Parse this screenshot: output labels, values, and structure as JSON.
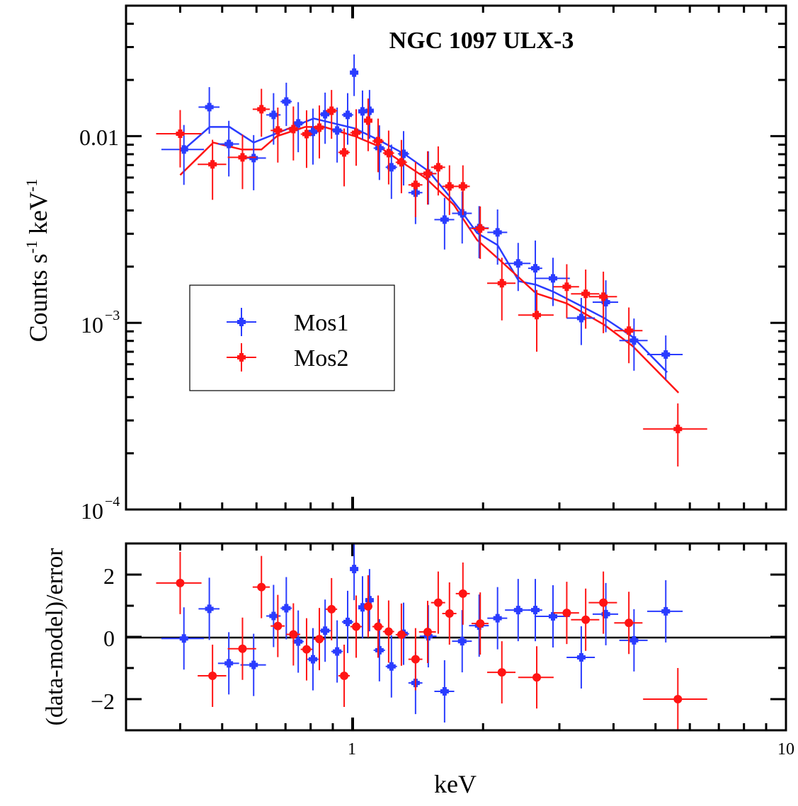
{
  "chart_data": [
    {
      "type": "scatter",
      "title": "NGC 1097 ULX-3",
      "xlabel": "keV",
      "ylabel": {
        "main": "Counts s",
        "sup1": "-1",
        "mid": " keV",
        "sup2": "-1"
      },
      "xscale": "log",
      "yscale": "log",
      "xlim": [
        0.3,
        10
      ],
      "ylim": [
        0.0001,
        0.05
      ],
      "ytick_labels": [
        {
          "value": 0.01,
          "text": "0.01"
        },
        {
          "value": 0.001,
          "base": "10",
          "exp": "−3"
        },
        {
          "value": 0.0001,
          "base": "10",
          "exp": "−4"
        }
      ],
      "legend": {
        "placement": "center-left",
        "entries": [
          "Mos1",
          "Mos2"
        ]
      },
      "grid": false,
      "series": [
        {
          "name": "Mos1",
          "color": "#2a3cff",
          "x": [
            0.408,
            0.467,
            0.518,
            0.591,
            0.657,
            0.703,
            0.749,
            0.81,
            0.864,
            0.921,
            0.974,
            1.008,
            1.054,
            1.094,
            1.153,
            1.229,
            1.311,
            1.397,
            1.495,
            1.63,
            1.79,
            1.959,
            2.16,
            2.41,
            2.64,
            2.9,
            3.37,
            3.84,
            4.46,
            5.28
          ],
          "xerr": [
            0.046,
            0.026,
            0.029,
            0.04,
            0.025,
            0.021,
            0.022,
            0.024,
            0.026,
            0.028,
            0.029,
            0.019,
            0.024,
            0.025,
            0.035,
            0.037,
            0.039,
            0.052,
            0.067,
            0.086,
            0.094,
            0.103,
            0.114,
            0.163,
            0.099,
            0.272,
            0.253,
            0.26,
            0.335,
            0.496
          ],
          "y": [
            0.00848,
            0.0143,
            0.00908,
            0.00763,
            0.013,
            0.01533,
            0.0117,
            0.01054,
            0.0131,
            0.01072,
            0.013,
            0.0219,
            0.01357,
            0.01368,
            0.00862,
            0.00681,
            0.00804,
            0.00498,
            0.0063,
            0.00357,
            0.00386,
            0.00322,
            0.00305,
            0.00208,
            0.00196,
            0.00173,
            0.00106,
            0.00129,
            0.000804,
            0.000676
          ],
          "yerr": [
            0.003,
            0.004,
            0.003,
            0.0025,
            0.004,
            0.004,
            0.0035,
            0.0035,
            0.004,
            0.0035,
            0.004,
            0.0055,
            0.004,
            0.004,
            0.0028,
            0.0022,
            0.0026,
            0.0016,
            0.002,
            0.0011,
            0.0012,
            0.001,
            0.001,
            0.0006,
            0.0008,
            0.0005,
            0.0003,
            0.0004,
            0.00025,
            0.00018
          ],
          "model": {
            "x": [
              0.406,
              0.468,
              0.52,
              0.591,
              0.813,
              1.011,
              1.153,
              1.315,
              1.5,
              1.667,
              1.797,
              1.937,
              2.16,
              2.42,
              2.65,
              2.9,
              3.37,
              3.81,
              4.43,
              5.32
            ],
            "y": [
              0.0084,
              0.0112,
              0.0112,
              0.00924,
              0.01243,
              0.011,
              0.00949,
              0.00804,
              0.00647,
              0.00481,
              0.00386,
              0.00303,
              0.00261,
              0.00167,
              0.0016,
              0.00147,
              0.00123,
              0.00106,
              0.00084,
              0.000543
            ]
          }
        },
        {
          "name": "Mos2",
          "color": "#ff1414",
          "x": [
            0.4,
            0.475,
            0.557,
            0.616,
            0.672,
            0.73,
            0.783,
            0.838,
            0.894,
            0.956,
            1.019,
            1.086,
            1.145,
            1.211,
            1.296,
            1.397,
            1.49,
            1.576,
            1.673,
            1.797,
            1.97,
            2.21,
            2.66,
            3.12,
            3.45,
            3.79,
            4.34,
            5.63
          ],
          "xerr": [
            0.048,
            0.036,
            0.042,
            0.028,
            0.025,
            0.027,
            0.024,
            0.025,
            0.027,
            0.029,
            0.031,
            0.024,
            0.034,
            0.036,
            0.039,
            0.052,
            0.067,
            0.059,
            0.063,
            0.067,
            0.089,
            0.166,
            0.25,
            0.211,
            0.259,
            0.285,
            0.326,
            0.95
          ],
          "y": [
            0.0103,
            0.00706,
            0.0077,
            0.01393,
            0.01072,
            0.01091,
            0.01026,
            0.0111,
            0.01368,
            0.00818,
            0.01044,
            0.01211,
            0.00941,
            0.00811,
            0.00724,
            0.00548,
            0.0063,
            0.00681,
            0.00538,
            0.00538,
            0.0032,
            0.00163,
            0.0011,
            0.00156,
            0.00143,
            0.00138,
            0.000908,
            0.00027
          ],
          "yerr": [
            0.0035,
            0.0025,
            0.0025,
            0.004,
            0.0035,
            0.0035,
            0.0035,
            0.0035,
            0.004,
            0.0028,
            0.0035,
            0.0038,
            0.003,
            0.0026,
            0.0023,
            0.0018,
            0.002,
            0.002,
            0.0016,
            0.0016,
            0.001,
            0.0006,
            0.0004,
            0.0005,
            0.0005,
            0.0005,
            0.0003,
            0.0001
          ],
          "model": {
            "x": [
              0.4,
              0.477,
              0.555,
              0.616,
              0.669,
              0.777,
              0.86,
              1.011,
              1.145,
              1.301,
              1.472,
              1.712,
              1.937,
              2.2,
              2.65,
              3.12,
              3.81,
              4.43,
              5.65
            ],
            "y": [
              0.00619,
              0.00924,
              0.00848,
              0.00848,
              0.01,
              0.0112,
              0.0112,
              0.01,
              0.00885,
              0.00724,
              0.00598,
              0.00429,
              0.00278,
              0.00214,
              0.00144,
              0.00127,
              0.000975,
              0.00075,
              0.000422
            ]
          }
        }
      ]
    },
    {
      "type": "scatter",
      "xlabel": "keV",
      "ylabel": "(data-model)/error",
      "xscale": "log",
      "xlim": [
        0.3,
        10
      ],
      "ylim": [
        -3,
        3
      ],
      "xtick_labels": [
        {
          "value": 1,
          "text": "1"
        },
        {
          "value": 10,
          "text": "10"
        }
      ],
      "ytick_labels": [
        {
          "value": 2,
          "text": "2"
        },
        {
          "value": 0,
          "text": "0"
        },
        {
          "value": -2,
          "text": "−2"
        }
      ],
      "reference_line": 0,
      "series": [
        {
          "color": "#2a3cff",
          "marker": "square",
          "x": [
            0.408,
            0.467,
            0.518,
            0.591,
            0.657,
            0.703,
            0.749,
            0.81,
            0.864,
            0.921,
            0.974,
            1.008,
            1.054,
            1.094,
            1.153,
            1.229,
            1.311,
            1.397,
            1.495,
            1.63,
            1.79,
            1.959,
            2.16,
            2.41,
            2.64,
            2.9,
            3.37,
            3.84,
            4.46,
            5.28
          ],
          "xerr": [
            0.046,
            0.026,
            0.029,
            0.04,
            0.025,
            0.021,
            0.022,
            0.024,
            0.026,
            0.028,
            0.029,
            0.019,
            0.024,
            0.025,
            0.035,
            0.037,
            0.039,
            0.052,
            0.067,
            0.086,
            0.094,
            0.103,
            0.114,
            0.163,
            0.099,
            0.272,
            0.253,
            0.26,
            0.335,
            0.496
          ],
          "y": [
            -0.05,
            0.9,
            -0.85,
            -0.9,
            0.67,
            0.92,
            -0.15,
            -0.72,
            0.2,
            -0.47,
            0.48,
            2.18,
            0.95,
            1.18,
            -0.43,
            -0.95,
            0.1,
            -1.48,
            0.02,
            -1.75,
            -0.14,
            0.36,
            0.6,
            0.86,
            0.86,
            0.66,
            -0.66,
            0.73,
            -0.11,
            0.82
          ],
          "yerr": 1
        },
        {
          "color": "#ff1414",
          "marker": "circle",
          "x": [
            0.4,
            0.475,
            0.557,
            0.616,
            0.672,
            0.73,
            0.783,
            0.838,
            0.894,
            0.956,
            1.019,
            1.086,
            1.145,
            1.211,
            1.296,
            1.397,
            1.49,
            1.576,
            1.673,
            1.797,
            1.97,
            2.21,
            2.66,
            3.12,
            3.45,
            3.79,
            4.34,
            5.63
          ],
          "xerr": [
            0.048,
            0.036,
            0.042,
            0.028,
            0.025,
            0.027,
            0.024,
            0.025,
            0.027,
            0.029,
            0.031,
            0.024,
            0.034,
            0.036,
            0.039,
            0.052,
            0.067,
            0.059,
            0.063,
            0.067,
            0.089,
            0.166,
            0.25,
            0.211,
            0.259,
            0.285,
            0.326,
            0.95
          ],
          "y": [
            1.73,
            -1.25,
            -0.38,
            1.6,
            0.35,
            0.08,
            -0.4,
            -0.07,
            0.89,
            -1.25,
            0.33,
            0.98,
            0.33,
            0.17,
            0.07,
            -0.72,
            0.16,
            1.1,
            0.75,
            1.39,
            0.43,
            -1.14,
            -1.3,
            0.77,
            0.55,
            1.1,
            0.45,
            -2.0
          ],
          "yerr": 1
        }
      ]
    }
  ]
}
